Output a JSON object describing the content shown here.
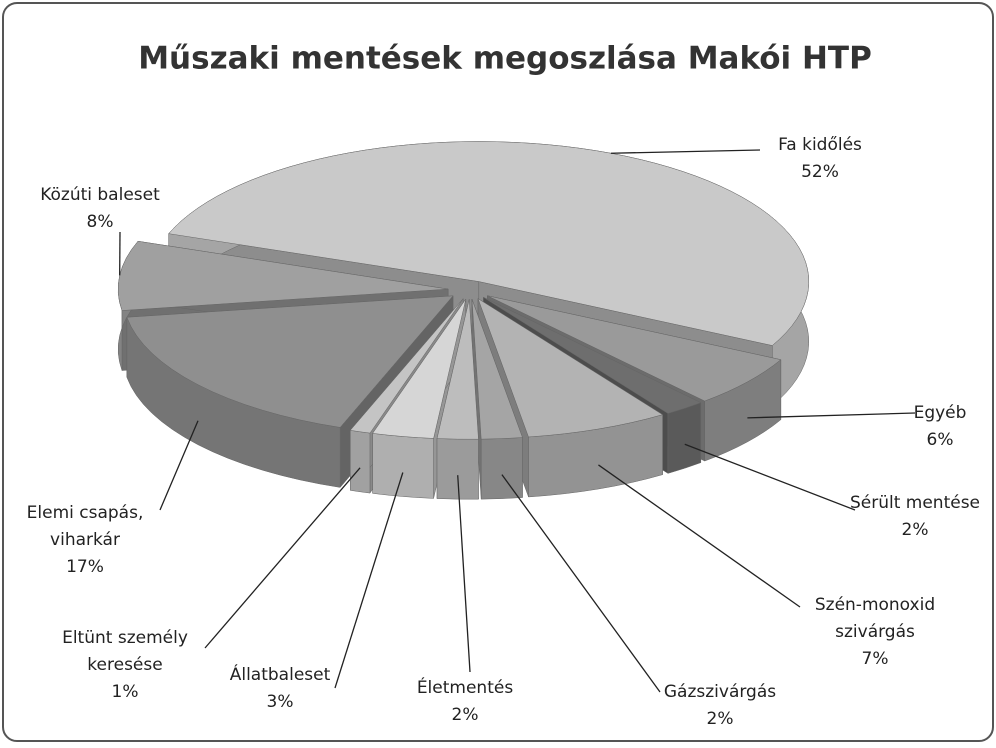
{
  "chart_data": {
    "type": "pie",
    "title": "Műszaki mentések megoszlása Makói HTP",
    "categories": [
      [
        "Fa kidőlés"
      ],
      [
        "Egyéb"
      ],
      [
        "Sérült mentése"
      ],
      [
        "Szén-monoxid",
        "szivárgás"
      ],
      [
        "Gázszivárgás"
      ],
      [
        "Életmentés"
      ],
      [
        "Állatbaleset"
      ],
      [
        "Eltünt személy",
        "keresése"
      ],
      [
        "Elemi csapás,",
        "viharkár"
      ],
      [
        "Közúti baleset"
      ]
    ],
    "values": [
      52,
      6,
      2,
      7,
      2,
      2,
      3,
      1,
      17,
      8
    ],
    "value_labels": [
      "52%",
      "6%",
      "2%",
      "7%",
      "2%",
      "2%",
      "3%",
      "1%",
      "17%",
      "8%"
    ],
    "colors": [
      "#c9c9c9",
      "#9a9a9a",
      "#6e6e6e",
      "#b3b3b3",
      "#a5a5a5",
      "#bdbdbd",
      "#d6d6d6",
      "#c4c4c4",
      "#8f8f8f",
      "#a0a0a0"
    ]
  }
}
